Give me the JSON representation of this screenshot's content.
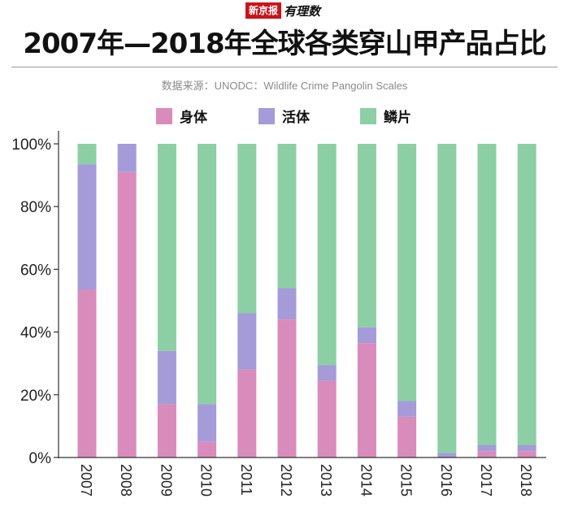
{
  "brand": {
    "red": "新京报",
    "black": "有理数"
  },
  "title": "2007年—2018年全球各类穿山甲产品占比",
  "source": "数据来源：UNODC：Wildlife Crime Pangolin Scales",
  "chart_data": {
    "type": "bar",
    "stacked": true,
    "categories": [
      "2007",
      "2008",
      "2009",
      "2010",
      "2011",
      "2012",
      "2013",
      "2014",
      "2015",
      "2016",
      "2017",
      "2018"
    ],
    "series": [
      {
        "name": "身体",
        "color": "#d98bbb",
        "values": [
          53.5,
          91,
          17,
          5,
          28,
          44,
          24.5,
          36.5,
          13,
          0,
          2,
          2
        ]
      },
      {
        "name": "活体",
        "color": "#a59bd8",
        "values": [
          40,
          9,
          17,
          12,
          18,
          10,
          5,
          5,
          5,
          1.5,
          2,
          2
        ]
      },
      {
        "name": "鳞片",
        "color": "#8ccfa4",
        "values": [
          6.5,
          0,
          66,
          83,
          54,
          46,
          70.5,
          58.5,
          82,
          98.5,
          96,
          96
        ]
      }
    ],
    "y_ticks": [
      "0%",
      "20%",
      "40%",
      "60%",
      "80%",
      "100%"
    ],
    "ylim": [
      0,
      100
    ],
    "legend_position": "top-center",
    "grid": false
  }
}
